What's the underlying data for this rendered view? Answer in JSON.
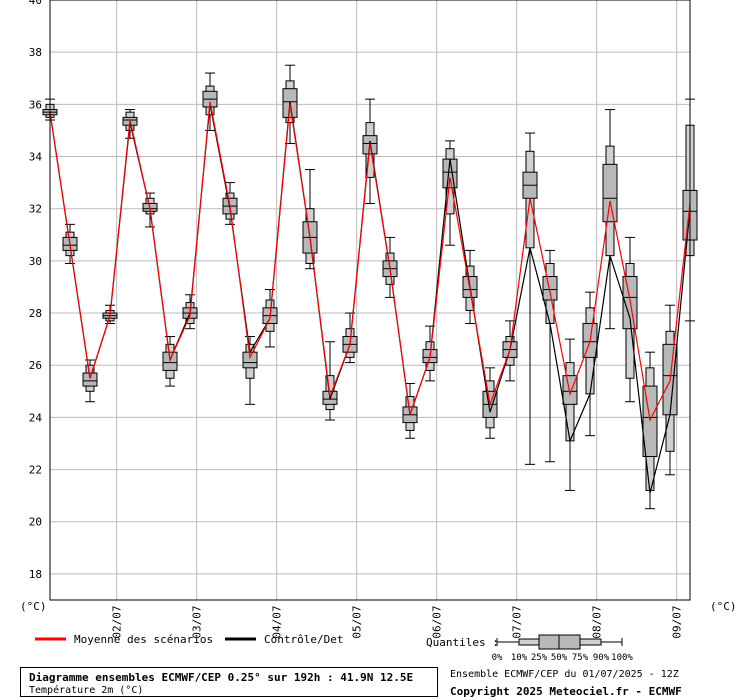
{
  "chart_data": {
    "type": "boxplot",
    "ylim": [
      17,
      40
    ],
    "yticks": [
      18,
      20,
      22,
      24,
      26,
      28,
      30,
      32,
      34,
      36,
      38,
      40
    ],
    "ylabel_left": "(°C)",
    "ylabel_right": "(°C)",
    "date_labels": [
      "02/07",
      "03/07",
      "04/07",
      "05/07",
      "06/07",
      "07/07",
      "08/07",
      "09/07"
    ],
    "legend": {
      "mean": "Moyenne des scénarios",
      "control": "Contrôle/Det",
      "quantiles_label": "Quantiles :",
      "quantile_ticks": [
        "0%",
        "10%",
        "25%",
        "50%",
        "75%",
        "90%",
        "100%"
      ],
      "mean_color": "#ff0000",
      "control_color": "#000000"
    },
    "series": [
      {
        "t": 0,
        "min": 35.4,
        "p10": 35.5,
        "p25": 35.6,
        "med": 35.7,
        "p75": 35.8,
        "p90": 36.0,
        "max": 36.2,
        "mean": 35.7,
        "control": 35.7
      },
      {
        "t": 3,
        "min": 29.9,
        "p10": 30.2,
        "p25": 30.4,
        "med": 30.6,
        "p75": 30.9,
        "p90": 31.1,
        "max": 31.4,
        "mean": 30.6,
        "control": 30.6
      },
      {
        "t": 6,
        "min": 24.6,
        "p10": 25.0,
        "p25": 25.2,
        "med": 25.4,
        "p75": 25.7,
        "p90": 26.0,
        "max": 26.2,
        "mean": 25.5,
        "control": 25.5
      },
      {
        "t": 9,
        "min": 27.6,
        "p10": 27.7,
        "p25": 27.8,
        "med": 27.9,
        "p75": 28.0,
        "p90": 28.1,
        "max": 28.3,
        "mean": 27.9,
        "control": 27.9
      },
      {
        "t": 12,
        "min": 34.7,
        "p10": 35.0,
        "p25": 35.2,
        "med": 35.4,
        "p75": 35.5,
        "p90": 35.7,
        "max": 35.8,
        "mean": 35.4,
        "control": 35.3
      },
      {
        "t": 15,
        "min": 31.3,
        "p10": 31.8,
        "p25": 31.9,
        "med": 32.0,
        "p75": 32.2,
        "p90": 32.4,
        "max": 32.6,
        "mean": 32.0,
        "control": 32.0
      },
      {
        "t": 18,
        "min": 25.2,
        "p10": 25.5,
        "p25": 25.8,
        "med": 26.1,
        "p75": 26.5,
        "p90": 26.8,
        "max": 27.1,
        "mean": 26.2,
        "control": 26.2
      },
      {
        "t": 21,
        "min": 27.4,
        "p10": 27.6,
        "p25": 27.8,
        "med": 28.0,
        "p75": 28.2,
        "p90": 28.4,
        "max": 28.7,
        "mean": 27.9,
        "control": 28.0
      },
      {
        "t": 24,
        "min": 35.0,
        "p10": 35.6,
        "p25": 35.9,
        "med": 36.2,
        "p75": 36.5,
        "p90": 36.7,
        "max": 37.2,
        "mean": 36.1,
        "control": 36.0
      },
      {
        "t": 27,
        "min": 31.4,
        "p10": 31.6,
        "p25": 31.8,
        "med": 32.1,
        "p75": 32.4,
        "p90": 32.6,
        "max": 33.0,
        "mean": 32.1,
        "control": 32.0
      },
      {
        "t": 30,
        "min": 24.5,
        "p10": 25.5,
        "p25": 25.9,
        "med": 26.1,
        "p75": 26.5,
        "p90": 26.8,
        "max": 27.1,
        "mean": 26.3,
        "control": 26.5
      },
      {
        "t": 33,
        "min": 26.7,
        "p10": 27.3,
        "p25": 27.6,
        "med": 27.9,
        "p75": 28.2,
        "p90": 28.5,
        "max": 28.9,
        "mean": 27.8,
        "control": 27.8
      },
      {
        "t": 36,
        "min": 34.5,
        "p10": 35.3,
        "p25": 35.5,
        "med": 36.1,
        "p75": 36.6,
        "p90": 36.9,
        "max": 37.5,
        "mean": 36.0,
        "control": 36.1
      },
      {
        "t": 39,
        "min": 29.7,
        "p10": 29.9,
        "p25": 30.3,
        "med": 30.9,
        "p75": 31.5,
        "p90": 32.0,
        "max": 33.5,
        "mean": 30.9,
        "control": 30.9
      },
      {
        "t": 42,
        "min": 23.9,
        "p10": 24.3,
        "p25": 24.5,
        "med": 24.7,
        "p75": 25.0,
        "p90": 25.6,
        "max": 26.9,
        "mean": 24.8,
        "control": 24.7
      },
      {
        "t": 45,
        "min": 26.1,
        "p10": 26.3,
        "p25": 26.5,
        "med": 26.8,
        "p75": 27.1,
        "p90": 27.4,
        "max": 28.0,
        "mean": 26.8,
        "control": 26.8
      },
      {
        "t": 48,
        "min": 32.2,
        "p10": 33.2,
        "p25": 34.1,
        "med": 34.5,
        "p75": 34.8,
        "p90": 35.3,
        "max": 36.2,
        "mean": 34.5,
        "control": 34.6
      },
      {
        "t": 51,
        "min": 28.6,
        "p10": 29.1,
        "p25": 29.4,
        "med": 29.7,
        "p75": 30.0,
        "p90": 30.3,
        "max": 30.9,
        "mean": 29.7,
        "control": 29.7
      },
      {
        "t": 54,
        "min": 23.2,
        "p10": 23.5,
        "p25": 23.8,
        "med": 24.1,
        "p75": 24.4,
        "p90": 24.8,
        "max": 25.3,
        "mean": 24.1,
        "control": 24.1
      },
      {
        "t": 57,
        "min": 25.4,
        "p10": 25.8,
        "p25": 26.1,
        "med": 26.3,
        "p75": 26.6,
        "p90": 26.9,
        "max": 27.5,
        "mean": 26.3,
        "control": 26.3
      },
      {
        "t": 60,
        "min": 30.6,
        "p10": 31.8,
        "p25": 32.8,
        "med": 33.4,
        "p75": 33.9,
        "p90": 34.3,
        "max": 34.6,
        "mean": 33.2,
        "control": 33.9
      },
      {
        "t": 63,
        "min": 27.6,
        "p10": 28.1,
        "p25": 28.6,
        "med": 28.9,
        "p75": 29.4,
        "p90": 29.8,
        "max": 30.4,
        "mean": 28.9,
        "control": 29.0
      },
      {
        "t": 66,
        "min": 23.2,
        "p10": 23.6,
        "p25": 24.0,
        "med": 24.5,
        "p75": 25.0,
        "p90": 25.4,
        "max": 25.9,
        "mean": 24.5,
        "control": 24.2
      },
      {
        "t": 69,
        "min": 25.4,
        "p10": 26.0,
        "p25": 26.3,
        "med": 26.6,
        "p75": 26.9,
        "p90": 27.1,
        "max": 27.7,
        "mean": 26.6,
        "control": 26.6
      },
      {
        "t": 72,
        "min": 22.2,
        "p10": 30.5,
        "p25": 32.4,
        "med": 32.9,
        "p75": 33.4,
        "p90": 34.2,
        "max": 34.9,
        "mean": 32.4,
        "control": 30.5
      },
      {
        "t": 75,
        "min": 22.3,
        "p10": 27.6,
        "p25": 28.5,
        "med": 28.9,
        "p75": 29.4,
        "p90": 29.9,
        "max": 30.4,
        "mean": 28.8,
        "control": 27.6
      },
      {
        "t": 78,
        "min": 21.2,
        "p10": 23.1,
        "p25": 24.5,
        "med": 25.0,
        "p75": 25.6,
        "p90": 26.1,
        "max": 27.0,
        "mean": 24.9,
        "control": 23.1
      },
      {
        "t": 81,
        "min": 23.3,
        "p10": 24.9,
        "p25": 26.3,
        "med": 26.9,
        "p75": 27.6,
        "p90": 28.2,
        "max": 28.8,
        "mean": 26.9,
        "control": 24.9
      },
      {
        "t": 84,
        "min": 27.4,
        "p10": 30.2,
        "p25": 31.5,
        "med": 32.4,
        "p75": 33.7,
        "p90": 34.4,
        "max": 35.8,
        "mean": 32.3,
        "control": 30.2
      },
      {
        "t": 87,
        "min": 24.6,
        "p10": 25.5,
        "p25": 27.4,
        "med": 28.6,
        "p75": 29.4,
        "p90": 29.9,
        "max": 30.9,
        "mean": 28.5,
        "control": 27.8
      },
      {
        "t": 90,
        "min": 20.5,
        "p10": 21.2,
        "p25": 22.5,
        "med": 24.0,
        "p75": 25.2,
        "p90": 25.9,
        "max": 26.5,
        "mean": 23.9,
        "control": 21.1
      },
      {
        "t": 93,
        "min": 21.8,
        "p10": 22.7,
        "p25": 24.1,
        "med": 25.6,
        "p75": 26.8,
        "p90": 27.3,
        "max": 28.3,
        "mean": 25.4,
        "control": 24.1
      },
      {
        "t": 96,
        "min": 27.7,
        "p10": 30.2,
        "p25": 30.8,
        "med": 31.9,
        "p75": 32.7,
        "p90": 35.2,
        "max": 36.2,
        "mean": 32.2,
        "control": 32.0
      }
    ]
  },
  "footer": {
    "title_line1": "Diagramme ensembles ECMWF/CEP 0.25° sur 192h : 41.9N 12.5E",
    "title_line2": "Température 2m (°C)",
    "ensemble_info": "Ensemble ECMWF/CEP du 01/07/2025 - 12Z",
    "copyright": "Copyright 2025 Meteociel.fr - ECMWF"
  }
}
